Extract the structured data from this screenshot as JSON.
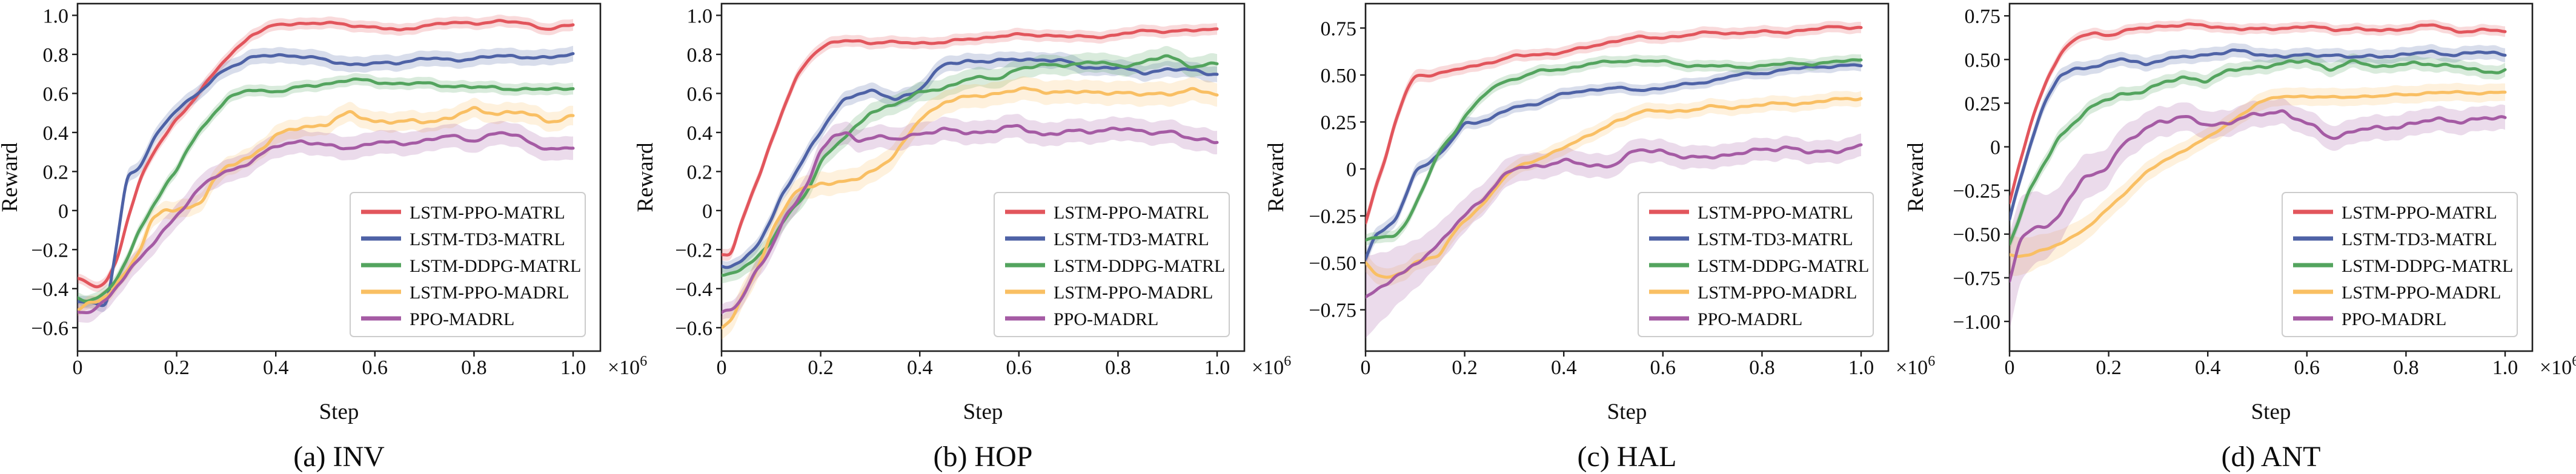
{
  "figure": {
    "xlabel": "Step",
    "ylabel": "Reward",
    "x_offset_label": "×10^6",
    "legend_labels": [
      "LSTM-PPO-MATRL",
      "LSTM-TD3-MATRL",
      "LSTM-DDPG-MATRL",
      "LSTM-PPO-MADRL",
      "PPO-MADRL"
    ],
    "colors": {
      "red": "#e2555c",
      "blue": "#4e62a6",
      "green": "#53a45e",
      "orange": "#f9bf63",
      "purple": "#a55ba4",
      "spine": "#1f1f1f",
      "text": "#0f0f0f",
      "legend_border": "#cccccc"
    }
  },
  "chart_data": [
    {
      "type": "line",
      "id": "inv",
      "caption": "(a) INV",
      "xlabel": "Step",
      "ylabel": "Reward",
      "xlim": [
        0,
        1.0
      ],
      "x_offset_label": "×10^6",
      "xtick_vals": [
        0,
        0.2,
        0.4,
        0.6,
        0.8,
        1.0
      ],
      "xtick_labels": [
        "0",
        "0.2",
        "0.4",
        "0.6",
        "0.8",
        "1.0"
      ],
      "ylim": [
        -0.72,
        1.06
      ],
      "ytick_vals": [
        1.0,
        0.8,
        0.6,
        0.4,
        0.2,
        0.0,
        -0.2,
        -0.4,
        -0.6
      ],
      "ytick_labels": [
        "1.0",
        "0.8",
        "0.6",
        "0.4",
        "0.2",
        "0",
        "−0.2",
        "−0.4",
        "−0.6"
      ],
      "ylabel_x": 28,
      "x": [
        0,
        0.02,
        0.04,
        0.06,
        0.08,
        0.1,
        0.125,
        0.15,
        0.175,
        0.2,
        0.225,
        0.25,
        0.275,
        0.3,
        0.35,
        0.4,
        0.45,
        0.5,
        0.55,
        0.6,
        0.65,
        0.7,
        0.75,
        0.8,
        0.85,
        0.9,
        0.95,
        1.0
      ],
      "series": [
        {
          "name": "LSTM-PPO-MATRL",
          "color_key": "red",
          "band": [
            0.025,
            0.03
          ],
          "jitter": 0.008,
          "values": [
            -0.35,
            -0.37,
            -0.4,
            -0.36,
            -0.25,
            -0.05,
            0.15,
            0.28,
            0.38,
            0.47,
            0.54,
            0.62,
            0.7,
            0.78,
            0.9,
            0.95,
            0.96,
            0.96,
            0.95,
            0.94,
            0.92,
            0.95,
            0.96,
            0.96,
            0.97,
            0.96,
            0.93,
            0.95
          ]
        },
        {
          "name": "LSTM-TD3-MATRL",
          "color_key": "blue",
          "band": [
            0.03,
            0.04
          ],
          "jitter": 0.01,
          "values": [
            -0.47,
            -0.47,
            -0.48,
            -0.48,
            -0.15,
            0.18,
            0.21,
            0.35,
            0.45,
            0.52,
            0.56,
            0.61,
            0.68,
            0.73,
            0.78,
            0.8,
            0.79,
            0.77,
            0.75,
            0.75,
            0.76,
            0.78,
            0.77,
            0.78,
            0.79,
            0.79,
            0.78,
            0.8
          ]
        },
        {
          "name": "LSTM-DDPG-MATRL",
          "color_key": "green",
          "band": [
            0.03,
            0.03
          ],
          "jitter": 0.01,
          "values": [
            -0.45,
            -0.46,
            -0.44,
            -0.42,
            -0.35,
            -0.25,
            -0.1,
            0.02,
            0.12,
            0.2,
            0.33,
            0.42,
            0.5,
            0.57,
            0.62,
            0.61,
            0.63,
            0.65,
            0.67,
            0.66,
            0.65,
            0.65,
            0.64,
            0.63,
            0.63,
            0.62,
            0.62,
            0.63
          ]
        },
        {
          "name": "LSTM-PPO-MADRL",
          "color_key": "orange",
          "band": [
            0.03,
            0.05
          ],
          "jitter": 0.015,
          "values": [
            -0.5,
            -0.48,
            -0.47,
            -0.44,
            -0.38,
            -0.3,
            -0.2,
            -0.05,
            0.0,
            0.0,
            0.02,
            0.05,
            0.15,
            0.22,
            0.28,
            0.38,
            0.43,
            0.44,
            0.5,
            0.46,
            0.45,
            0.46,
            0.47,
            0.52,
            0.5,
            0.5,
            0.46,
            0.48
          ]
        },
        {
          "name": "PPO-MADRL",
          "color_key": "purple",
          "band": [
            0.05,
            0.06
          ],
          "jitter": 0.012,
          "values": [
            -0.52,
            -0.53,
            -0.5,
            -0.45,
            -0.38,
            -0.32,
            -0.25,
            -0.18,
            -0.1,
            -0.02,
            0.05,
            0.12,
            0.17,
            0.2,
            0.25,
            0.33,
            0.36,
            0.33,
            0.32,
            0.35,
            0.34,
            0.36,
            0.38,
            0.36,
            0.4,
            0.37,
            0.31,
            0.32
          ]
        }
      ]
    },
    {
      "type": "line",
      "id": "hop",
      "caption": "(b) HOP",
      "xlabel": "Step",
      "ylabel": "Reward",
      "xlim": [
        0,
        1.0
      ],
      "x_offset_label": "×10^6",
      "xtick_vals": [
        0,
        0.2,
        0.4,
        0.6,
        0.8,
        1.0
      ],
      "xtick_labels": [
        "0",
        "0.2",
        "0.4",
        "0.6",
        "0.8",
        "1.0"
      ],
      "ylim": [
        -0.72,
        1.06
      ],
      "ytick_vals": [
        1.0,
        0.8,
        0.6,
        0.4,
        0.2,
        0.0,
        -0.2,
        -0.4,
        -0.6
      ],
      "ytick_labels": [
        "1.0",
        "0.8",
        "0.6",
        "0.4",
        "0.2",
        "0",
        "−0.2",
        "−0.4",
        "−0.6"
      ],
      "ylabel_x": 14,
      "x": [
        0,
        0.02,
        0.04,
        0.06,
        0.08,
        0.1,
        0.125,
        0.15,
        0.175,
        0.2,
        0.225,
        0.25,
        0.275,
        0.3,
        0.35,
        0.4,
        0.45,
        0.5,
        0.55,
        0.6,
        0.65,
        0.7,
        0.75,
        0.8,
        0.85,
        0.9,
        0.95,
        1.0
      ],
      "series": [
        {
          "name": "LSTM-PPO-MATRL",
          "color_key": "red",
          "band": [
            0.03,
            0.03
          ],
          "jitter": 0.008,
          "values": [
            -0.23,
            -0.23,
            -0.05,
            0.08,
            0.2,
            0.35,
            0.52,
            0.68,
            0.78,
            0.83,
            0.86,
            0.87,
            0.87,
            0.86,
            0.86,
            0.86,
            0.86,
            0.88,
            0.89,
            0.9,
            0.9,
            0.89,
            0.89,
            0.9,
            0.92,
            0.92,
            0.92,
            0.93
          ]
        },
        {
          "name": "LSTM-TD3-MATRL",
          "color_key": "blue",
          "band": [
            0.03,
            0.04
          ],
          "jitter": 0.012,
          "values": [
            -0.28,
            -0.28,
            -0.26,
            -0.22,
            -0.15,
            -0.05,
            0.1,
            0.2,
            0.3,
            0.4,
            0.5,
            0.58,
            0.6,
            0.61,
            0.57,
            0.62,
            0.75,
            0.77,
            0.76,
            0.78,
            0.77,
            0.76,
            0.73,
            0.73,
            0.71,
            0.72,
            0.72,
            0.7
          ]
        },
        {
          "name": "LSTM-DDPG-MATRL",
          "color_key": "green",
          "band": [
            0.04,
            0.05
          ],
          "jitter": 0.012,
          "values": [
            -0.33,
            -0.33,
            -0.3,
            -0.27,
            -0.22,
            -0.15,
            -0.05,
            0.02,
            0.1,
            0.25,
            0.33,
            0.38,
            0.43,
            0.5,
            0.55,
            0.6,
            0.63,
            0.68,
            0.67,
            0.73,
            0.74,
            0.75,
            0.76,
            0.74,
            0.76,
            0.79,
            0.74,
            0.75
          ]
        },
        {
          "name": "LSTM-PPO-MADRL",
          "color_key": "orange",
          "band": [
            0.06,
            0.06
          ],
          "jitter": 0.012,
          "values": [
            -0.6,
            -0.57,
            -0.45,
            -0.35,
            -0.25,
            -0.12,
            0.0,
            0.1,
            0.12,
            0.15,
            0.13,
            0.15,
            0.16,
            0.2,
            0.28,
            0.47,
            0.56,
            0.58,
            0.6,
            0.62,
            0.61,
            0.61,
            0.6,
            0.61,
            0.59,
            0.6,
            0.62,
            0.59
          ]
        },
        {
          "name": "PPO-MADRL",
          "color_key": "purple",
          "band": [
            0.04,
            0.06
          ],
          "jitter": 0.015,
          "values": [
            -0.53,
            -0.5,
            -0.45,
            -0.35,
            -0.28,
            -0.2,
            -0.05,
            0.05,
            0.15,
            0.3,
            0.38,
            0.4,
            0.36,
            0.38,
            0.36,
            0.4,
            0.41,
            0.4,
            0.41,
            0.43,
            0.39,
            0.4,
            0.41,
            0.42,
            0.4,
            0.41,
            0.36,
            0.36
          ]
        }
      ]
    },
    {
      "type": "line",
      "id": "hal",
      "caption": "(c) HAL",
      "xlabel": "Step",
      "ylabel": "Reward",
      "xlim": [
        0,
        1.0
      ],
      "x_offset_label": "×10^6",
      "xtick_vals": [
        0,
        0.2,
        0.4,
        0.6,
        0.8,
        1.0
      ],
      "xtick_labels": [
        "0",
        "0.2",
        "0.4",
        "0.6",
        "0.8",
        "1.0"
      ],
      "ylim": [
        -0.97,
        0.88
      ],
      "ytick_vals": [
        0.75,
        0.5,
        0.25,
        0.0,
        -0.25,
        -0.5,
        -0.75
      ],
      "ytick_labels": [
        "0.75",
        "0.50",
        "0.25",
        "0",
        "−0.25",
        "−0.50",
        "−0.75"
      ],
      "ylabel_x": -8,
      "x": [
        0,
        0.02,
        0.04,
        0.06,
        0.08,
        0.1,
        0.125,
        0.15,
        0.175,
        0.2,
        0.225,
        0.25,
        0.275,
        0.3,
        0.35,
        0.4,
        0.45,
        0.5,
        0.55,
        0.6,
        0.65,
        0.7,
        0.75,
        0.8,
        0.85,
        0.9,
        0.95,
        1.0
      ],
      "series": [
        {
          "name": "LSTM-PPO-MATRL",
          "color_key": "red",
          "band": [
            0.04,
            0.03
          ],
          "jitter": 0.008,
          "values": [
            -0.28,
            -0.1,
            0.05,
            0.25,
            0.4,
            0.5,
            0.5,
            0.51,
            0.52,
            0.54,
            0.55,
            0.57,
            0.58,
            0.6,
            0.61,
            0.62,
            0.65,
            0.68,
            0.7,
            0.7,
            0.71,
            0.73,
            0.72,
            0.73,
            0.73,
            0.74,
            0.76,
            0.75
          ]
        },
        {
          "name": "LSTM-TD3-MATRL",
          "color_key": "blue",
          "band": [
            0.04,
            0.03
          ],
          "jitter": 0.008,
          "values": [
            -0.48,
            -0.35,
            -0.32,
            -0.28,
            -0.15,
            0.0,
            0.02,
            0.08,
            0.15,
            0.25,
            0.25,
            0.26,
            0.3,
            0.33,
            0.35,
            0.4,
            0.42,
            0.43,
            0.42,
            0.43,
            0.45,
            0.47,
            0.5,
            0.51,
            0.53,
            0.54,
            0.55,
            0.55
          ]
        },
        {
          "name": "LSTM-DDPG-MATRL",
          "color_key": "green",
          "band": [
            0.03,
            0.03
          ],
          "jitter": 0.008,
          "values": [
            -0.38,
            -0.37,
            -0.36,
            -0.35,
            -0.3,
            -0.2,
            -0.05,
            0.1,
            0.18,
            0.28,
            0.35,
            0.42,
            0.46,
            0.48,
            0.52,
            0.53,
            0.56,
            0.57,
            0.58,
            0.57,
            0.55,
            0.55,
            0.54,
            0.55,
            0.56,
            0.56,
            0.57,
            0.58
          ]
        },
        {
          "name": "LSTM-PPO-MADRL",
          "color_key": "orange",
          "band": [
            0.05,
            0.04
          ],
          "jitter": 0.01,
          "values": [
            -0.5,
            -0.55,
            -0.58,
            -0.57,
            -0.55,
            -0.5,
            -0.48,
            -0.45,
            -0.35,
            -0.28,
            -0.22,
            -0.15,
            -0.05,
            0.0,
            0.05,
            0.12,
            0.17,
            0.25,
            0.3,
            0.31,
            0.31,
            0.33,
            0.33,
            0.34,
            0.35,
            0.35,
            0.37,
            0.38
          ]
        },
        {
          "name": "PPO-MADRL",
          "color_key": "purple",
          "band": [
            0.22,
            0.06
          ],
          "jitter": 0.015,
          "values": [
            -0.68,
            -0.65,
            -0.62,
            -0.58,
            -0.55,
            -0.5,
            -0.45,
            -0.4,
            -0.32,
            -0.25,
            -0.18,
            -0.12,
            -0.05,
            0.0,
            0.02,
            0.04,
            0.02,
            0.02,
            0.1,
            0.1,
            0.05,
            0.07,
            0.08,
            0.1,
            0.12,
            0.08,
            0.1,
            0.12
          ]
        }
      ]
    },
    {
      "type": "line",
      "id": "ant",
      "caption": "(d) ANT",
      "xlabel": "Step",
      "ylabel": "Reward",
      "xlim": [
        0,
        1.0
      ],
      "x_offset_label": "×10^6",
      "xtick_vals": [
        0,
        0.2,
        0.4,
        0.6,
        0.8,
        1.0
      ],
      "xtick_labels": [
        "0",
        "0.2",
        "0.4",
        "0.6",
        "0.8",
        "1.0"
      ],
      "ylim": [
        -1.17,
        0.82
      ],
      "ytick_vals": [
        0.75,
        0.5,
        0.25,
        0.0,
        -0.25,
        -0.5,
        -0.75,
        -1.0
      ],
      "ytick_labels": [
        "0.75",
        "0.50",
        "0.25",
        "0",
        "−0.25",
        "−0.50",
        "−0.75",
        "−1.00"
      ],
      "ylabel_x": -15,
      "x": [
        0,
        0.02,
        0.04,
        0.06,
        0.08,
        0.1,
        0.125,
        0.15,
        0.175,
        0.2,
        0.225,
        0.25,
        0.275,
        0.3,
        0.35,
        0.4,
        0.45,
        0.5,
        0.55,
        0.6,
        0.65,
        0.7,
        0.75,
        0.8,
        0.85,
        0.9,
        0.95,
        1.0
      ],
      "series": [
        {
          "name": "LSTM-PPO-MATRL",
          "color_key": "red",
          "band": [
            0.03,
            0.03
          ],
          "jitter": 0.01,
          "values": [
            -0.32,
            -0.1,
            0.1,
            0.28,
            0.42,
            0.52,
            0.6,
            0.64,
            0.65,
            0.64,
            0.66,
            0.67,
            0.68,
            0.69,
            0.7,
            0.69,
            0.68,
            0.67,
            0.68,
            0.69,
            0.67,
            0.68,
            0.66,
            0.68,
            0.7,
            0.66,
            0.67,
            0.66
          ]
        },
        {
          "name": "LSTM-TD3-MATRL",
          "color_key": "blue",
          "band": [
            0.04,
            0.04
          ],
          "jitter": 0.012,
          "values": [
            -0.42,
            -0.2,
            0.0,
            0.18,
            0.3,
            0.4,
            0.44,
            0.45,
            0.47,
            0.48,
            0.5,
            0.49,
            0.47,
            0.5,
            0.51,
            0.53,
            0.55,
            0.53,
            0.52,
            0.52,
            0.53,
            0.51,
            0.52,
            0.53,
            0.54,
            0.53,
            0.54,
            0.53
          ]
        },
        {
          "name": "LSTM-DDPG-MATRL",
          "color_key": "green",
          "band": [
            0.04,
            0.04
          ],
          "jitter": 0.015,
          "values": [
            -0.55,
            -0.4,
            -0.25,
            -0.15,
            -0.05,
            0.05,
            0.13,
            0.2,
            0.24,
            0.27,
            0.3,
            0.31,
            0.33,
            0.35,
            0.4,
            0.38,
            0.44,
            0.46,
            0.47,
            0.5,
            0.44,
            0.49,
            0.46,
            0.47,
            0.48,
            0.46,
            0.43,
            0.44
          ]
        },
        {
          "name": "LSTM-PPO-MADRL",
          "color_key": "orange",
          "band": [
            0.12,
            0.05
          ],
          "jitter": 0.008,
          "values": [
            -0.62,
            -0.63,
            -0.62,
            -0.6,
            -0.58,
            -0.55,
            -0.52,
            -0.48,
            -0.42,
            -0.35,
            -0.28,
            -0.22,
            -0.15,
            -0.1,
            -0.02,
            0.05,
            0.15,
            0.25,
            0.29,
            0.29,
            0.28,
            0.29,
            0.29,
            0.3,
            0.31,
            0.31,
            0.31,
            0.31
          ]
        },
        {
          "name": "PPO-MADRL",
          "color_key": "purple",
          "band": [
            0.28,
            0.07
          ],
          "jitter": 0.018,
          "values": [
            -0.77,
            -0.55,
            -0.48,
            -0.44,
            -0.45,
            -0.4,
            -0.28,
            -0.18,
            -0.15,
            -0.1,
            0.0,
            0.05,
            0.1,
            0.15,
            0.17,
            0.12,
            0.15,
            0.18,
            0.21,
            0.13,
            0.05,
            0.1,
            0.1,
            0.13,
            0.15,
            0.15,
            0.16,
            0.16
          ]
        }
      ]
    }
  ]
}
